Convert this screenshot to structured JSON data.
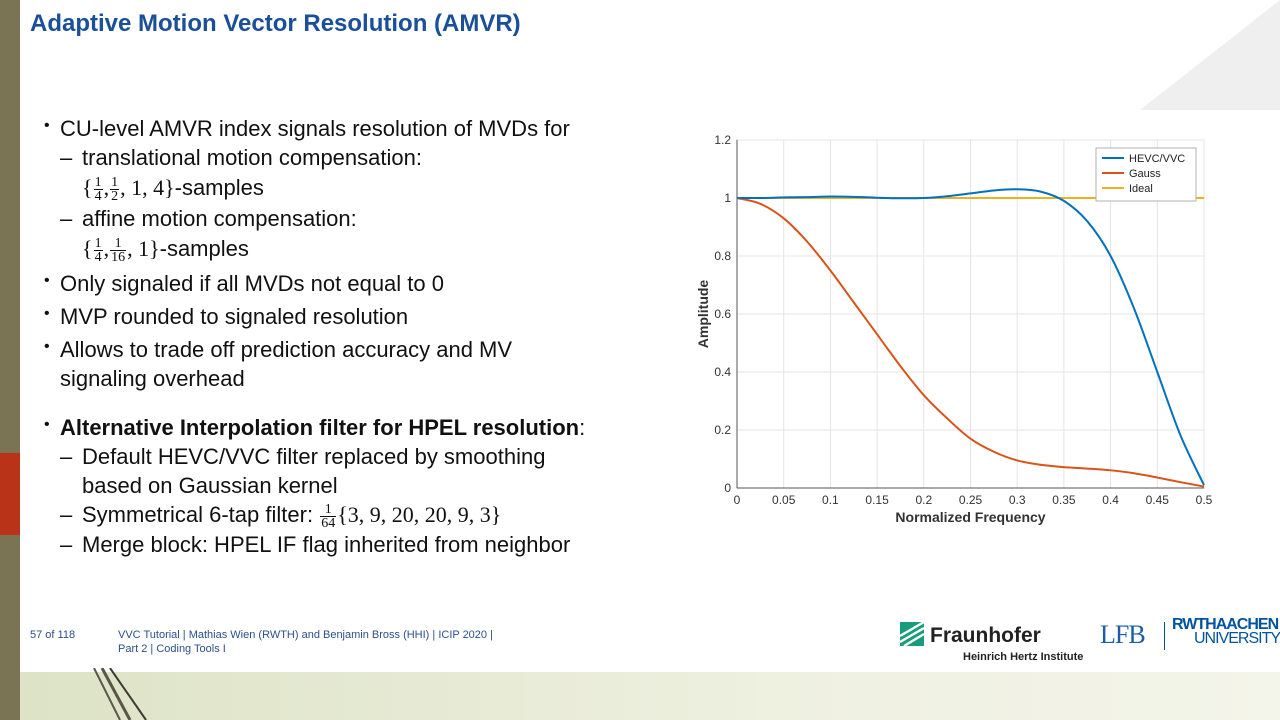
{
  "title": "Adaptive Motion Vector Resolution (AMVR)",
  "bullets": {
    "b1": "CU-level AMVR index signals resolution of MVDs for",
    "b1_sub1": "translational motion compensation:",
    "b1_sub1_math_pre": "{",
    "b1_sub1_f1_num": "1",
    "b1_sub1_f1_den": "4",
    "b1_sub1_f2_num": "1",
    "b1_sub1_f2_den": "2",
    "b1_sub1_math_post": ", 1, 4}",
    "b1_sub1_suffix": "-samples",
    "b1_sub2": "affine motion compensation:",
    "b1_sub2_math_pre": "{",
    "b1_sub2_f1_num": "1",
    "b1_sub2_f1_den": "4",
    "b1_sub2_f2_num": "1",
    "b1_sub2_f2_den": "16",
    "b1_sub2_math_post": ", 1}",
    "b1_sub2_suffix": "-samples",
    "b2": "Only signaled if all MVDs not equal to 0",
    "b3": "MVP rounded to signaled resolution",
    "b4_line1": "Allows to trade off prediction accuracy and MV",
    "b4_line2": "signaling overhead",
    "b5_bold": "Alternative Interpolation filter for HPEL resolution",
    "b5_colon": ":",
    "b5_sub1_line1": "Default HEVC/VVC filter replaced by smoothing",
    "b5_sub1_line2": "based on Gaussian kernel",
    "b5_sub2_text": "Symmetrical 6-tap filter:",
    "b5_sub2_f_num": "1",
    "b5_sub2_f_den": "64",
    "b5_sub2_math": "{3, 9, 20, 20, 9, 3}",
    "b5_sub3": "Merge block: HPEL IF flag inherited from neighbor",
    "bullet_glyph": "•",
    "dash_glyph": "–"
  },
  "chart_data": {
    "type": "line",
    "xlabel": "Normalized Frequency",
    "ylabel": "Amplitude",
    "xlim": [
      0,
      0.5
    ],
    "ylim": [
      0,
      1.2
    ],
    "xticks": [
      "0",
      "0.05",
      "0.1",
      "0.15",
      "0.2",
      "0.25",
      "0.3",
      "0.35",
      "0.4",
      "0.45",
      "0.5"
    ],
    "yticks": [
      "0",
      "0.2",
      "0.4",
      "0.6",
      "0.8",
      "1",
      "1.2"
    ],
    "legend_position": "top-right",
    "grid": true,
    "series": [
      {
        "name": "HEVC/VVC",
        "color": "#0072bd",
        "x": [
          0,
          0.025,
          0.05,
          0.075,
          0.1,
          0.125,
          0.15,
          0.175,
          0.2,
          0.225,
          0.25,
          0.275,
          0.3,
          0.325,
          0.35,
          0.375,
          0.4,
          0.425,
          0.45,
          0.475,
          0.5
        ],
        "y": [
          1,
          1.0,
          1.002,
          1.003,
          1.005,
          1.004,
          1.001,
          0.999,
          1.0,
          1.006,
          1.016,
          1.026,
          1.03,
          1.022,
          0.99,
          0.92,
          0.8,
          0.62,
          0.4,
          0.18,
          0.01
        ]
      },
      {
        "name": "Gauss",
        "color": "#d95319",
        "x": [
          0,
          0.025,
          0.05,
          0.075,
          0.1,
          0.125,
          0.15,
          0.175,
          0.2,
          0.225,
          0.25,
          0.275,
          0.3,
          0.325,
          0.35,
          0.375,
          0.4,
          0.425,
          0.45,
          0.475,
          0.5
        ],
        "y": [
          1,
          0.98,
          0.93,
          0.85,
          0.75,
          0.64,
          0.53,
          0.42,
          0.32,
          0.24,
          0.17,
          0.125,
          0.095,
          0.08,
          0.072,
          0.067,
          0.061,
          0.051,
          0.036,
          0.02,
          0.005
        ]
      },
      {
        "name": "Ideal",
        "color": "#edb120",
        "x": [
          0,
          0.5
        ],
        "y": [
          1,
          1
        ]
      }
    ]
  },
  "footer": {
    "page": "57 of 118",
    "line1": "VVC Tutorial  |  Mathias Wien (RWTH) and Benjamin Bross (HHI)  |  ICIP 2020  |",
    "line2": "Part 2  |  Coding Tools I"
  },
  "logos": {
    "fraunhofer_name": "Fraunhofer",
    "fraunhofer_sub": "Heinrich Hertz Institute",
    "lfb": "LFB",
    "rwth_top": "RWTHAACHEN",
    "rwth_bottom": "UNIVERSITY"
  },
  "colors": {
    "title": "#1a4f9a",
    "left_bar": "#7a7455",
    "left_accent": "#b83318",
    "fraunhofer_green": "#179c7d",
    "rwth_blue": "#00549f"
  }
}
